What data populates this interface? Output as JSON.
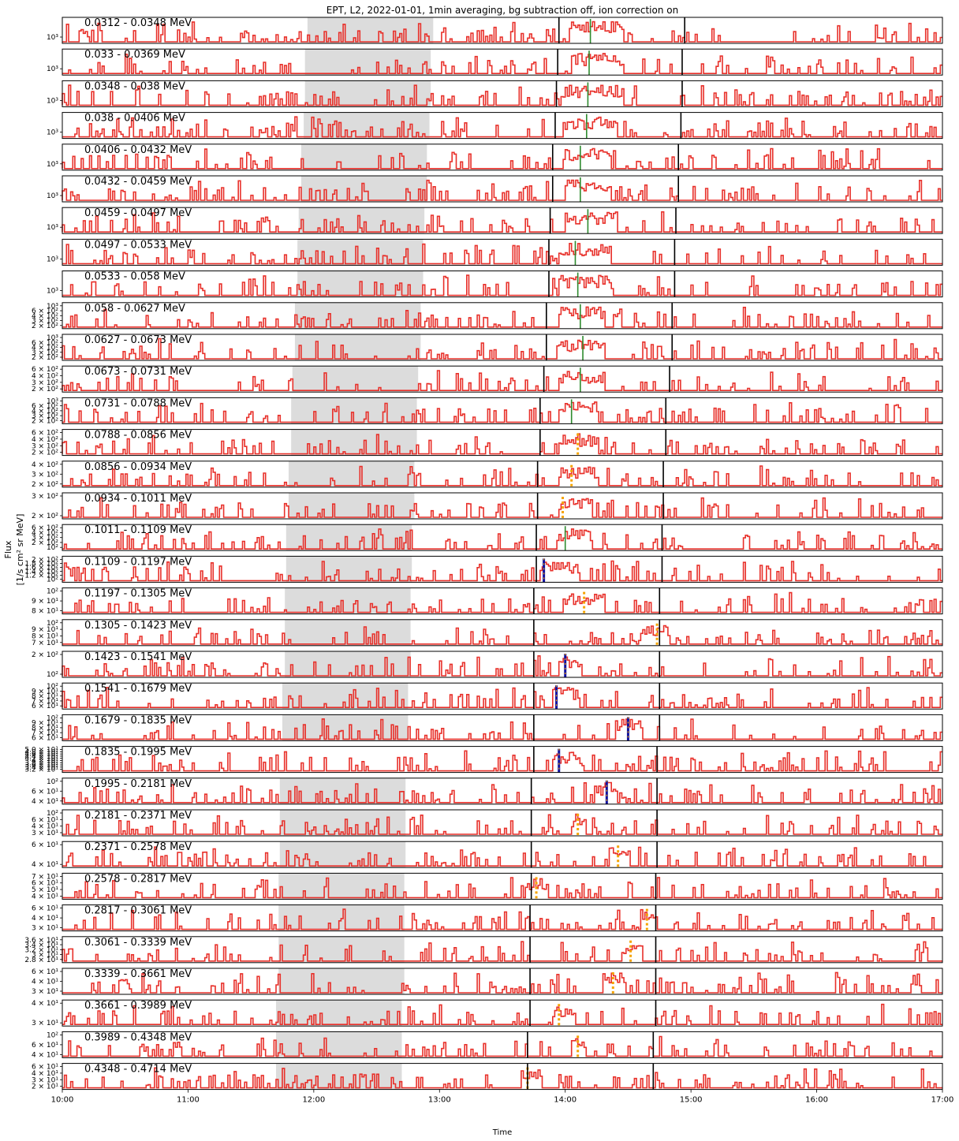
{
  "chart_data": {
    "type": "line",
    "title": "EPT, L2, 2022-01-01, 1min averaging, bg subtraction off, ion correction on",
    "xlabel": "Time",
    "ylabel_line1": "Flux",
    "ylabel_line2": "[1/s cm² sr MeV]",
    "xlim": [
      "10:00",
      "17:00"
    ],
    "x_ticks": [
      "10:00",
      "11:00",
      "12:00",
      "13:00",
      "14:00",
      "15:00",
      "16:00",
      "17:00"
    ],
    "y_scale": "log",
    "series_color": "#e8302a",
    "shading_color": "#dcdcdc",
    "onset_marker_color": "#2e8b2e",
    "panels": [
      {
        "label": "0.0312 - 0.0348 MeV",
        "yticks": [
          "10³"
        ],
        "shade": [
          11.95,
          12.95
        ],
        "vlines": [
          13.95,
          14.95
        ],
        "onset": 14.2,
        "onset_style": "green",
        "peak": [
          14.05,
          14.45
        ],
        "seed": 1
      },
      {
        "label": "0.033 - 0.0369 MeV",
        "yticks": [
          "10³"
        ],
        "shade": [
          11.93,
          12.93
        ],
        "vlines": [
          13.94,
          14.93
        ],
        "onset": 14.19,
        "onset_style": "green",
        "peak": [
          14.05,
          14.45
        ],
        "seed": 2
      },
      {
        "label": "0.0348 - 0.038 MeV",
        "yticks": [
          "10³"
        ],
        "shade": [
          11.93,
          12.93
        ],
        "vlines": [
          13.93,
          14.93
        ],
        "onset": 14.18,
        "onset_style": "green",
        "peak": [
          14.0,
          14.45
        ],
        "seed": 3
      },
      {
        "label": "0.038 - 0.0406 MeV",
        "yticks": [
          "10³"
        ],
        "shade": [
          11.92,
          12.92
        ],
        "vlines": [
          13.92,
          14.92
        ],
        "onset": 14.17,
        "onset_style": "green",
        "peak": [
          14.0,
          14.4
        ],
        "seed": 4
      },
      {
        "label": "0.0406 - 0.0432 MeV",
        "yticks": [
          "10³"
        ],
        "shade": [
          11.9,
          12.9
        ],
        "vlines": [
          13.9,
          14.9
        ],
        "onset": 14.12,
        "onset_style": "green",
        "peak": [
          14.0,
          14.35
        ],
        "seed": 5
      },
      {
        "label": "0.0432 - 0.0459 MeV",
        "yticks": [
          "10³"
        ],
        "shade": [
          11.9,
          12.9
        ],
        "vlines": [
          13.9,
          14.9
        ],
        "onset": 14.12,
        "onset_style": "green",
        "peak": [
          14.0,
          14.35
        ],
        "seed": 6
      },
      {
        "label": "0.0459 - 0.0497 MeV",
        "yticks": [
          "10³"
        ],
        "shade": [
          11.88,
          12.88
        ],
        "vlines": [
          13.88,
          14.88
        ],
        "onset": 14.18,
        "onset_style": "green",
        "peak": [
          14.0,
          14.4
        ],
        "seed": 7
      },
      {
        "label": "0.0497 - 0.0533 MeV",
        "yticks": [
          "10³"
        ],
        "shade": [
          11.87,
          12.87
        ],
        "vlines": [
          13.87,
          14.87
        ],
        "onset": 14.08,
        "onset_style": "green",
        "peak": [
          13.95,
          14.35
        ],
        "seed": 8
      },
      {
        "label": "0.0533 - 0.058 MeV",
        "yticks": [
          "10³"
        ],
        "shade": [
          11.87,
          12.87
        ],
        "vlines": [
          13.87,
          14.87
        ],
        "onset": 14.1,
        "onset_style": "green",
        "peak": [
          13.95,
          14.35
        ],
        "seed": 9
      },
      {
        "label": "0.058 - 0.0627 MeV",
        "yticks": [
          "10³",
          "6 × 10²",
          "4 × 10²",
          "3 × 10²",
          "2 × 10²"
        ],
        "shade": [
          11.85,
          12.85
        ],
        "vlines": [
          13.85,
          14.85
        ],
        "onset": 14.12,
        "onset_style": "green",
        "peak": [
          13.95,
          14.3
        ],
        "seed": 10
      },
      {
        "label": "0.0627 - 0.0673 MeV",
        "yticks": [
          "10³",
          "6 × 10²",
          "4 × 10²",
          "3 × 10²",
          "2 × 10²"
        ],
        "shade": [
          11.85,
          12.85
        ],
        "vlines": [
          13.85,
          14.85
        ],
        "onset": 14.14,
        "onset_style": "green",
        "peak": [
          13.95,
          14.3
        ],
        "seed": 11
      },
      {
        "label": "0.0673 - 0.0731 MeV",
        "yticks": [
          "6 × 10²",
          "4 × 10²",
          "3 × 10²",
          "2 × 10²"
        ],
        "shade": [
          11.83,
          12.83
        ],
        "vlines": [
          13.83,
          14.83
        ],
        "onset": 14.12,
        "onset_style": "green",
        "peak": [
          13.95,
          14.3
        ],
        "seed": 12
      },
      {
        "label": "0.0731 - 0.0788 MeV",
        "yticks": [
          "10³",
          "6 × 10²",
          "4 × 10²",
          "3 × 10²",
          "2 × 10²"
        ],
        "shade": [
          11.82,
          12.82
        ],
        "vlines": [
          13.8,
          14.8
        ],
        "onset": 14.05,
        "onset_style": "green",
        "peak": [
          13.95,
          14.25
        ],
        "seed": 13
      },
      {
        "label": "0.0788 - 0.0856 MeV",
        "yticks": [
          "6 × 10²",
          "4 × 10²",
          "3 × 10²",
          "2 × 10²"
        ],
        "shade": [
          11.82,
          12.82
        ],
        "vlines": [
          13.8,
          14.8
        ],
        "onset": 14.1,
        "onset_style": "orange",
        "peak": [
          13.95,
          14.25
        ],
        "seed": 14
      },
      {
        "label": "0.0856 - 0.0934 MeV",
        "yticks": [
          "4 × 10²",
          "3 × 10²",
          "2 × 10²"
        ],
        "shade": [
          11.8,
          12.8
        ],
        "vlines": [
          13.78,
          14.78
        ],
        "onset": 14.05,
        "onset_style": "orange",
        "peak": [
          13.95,
          14.25
        ],
        "seed": 15
      },
      {
        "label": "0.0934 - 0.1011 MeV",
        "yticks": [
          "3 × 10²",
          "2 × 10²"
        ],
        "shade": [
          11.8,
          12.8
        ],
        "vlines": [
          13.78,
          14.78
        ],
        "onset": 13.98,
        "onset_style": "orange",
        "peak": [
          13.95,
          14.2
        ],
        "seed": 16
      },
      {
        "label": "0.1011 - 0.1109 MeV",
        "yticks": [
          "6 × 10²",
          "4 × 10²",
          "3 × 10²",
          "2 × 10²",
          "10²"
        ],
        "shade": [
          11.78,
          12.78
        ],
        "vlines": [
          13.77,
          14.77
        ],
        "onset": 14.0,
        "onset_style": "green",
        "peak": [
          13.95,
          14.2
        ],
        "seed": 17
      },
      {
        "label": "0.1109 - 0.1197 MeV",
        "yticks": [
          "2 × 10²",
          "1.8 × 10²",
          "1.6 × 10²",
          "1.4 × 10²",
          "1.2 × 10²",
          "10²"
        ],
        "shade": [
          11.78,
          12.78
        ],
        "vlines": [
          13.77,
          14.77
        ],
        "onset": 13.83,
        "onset_style": "blue",
        "peak": [
          13.8,
          14.1
        ],
        "seed": 18
      },
      {
        "label": "0.1197 - 0.1305 MeV",
        "yticks": [
          "10²",
          "9 × 10¹",
          "8 × 10¹"
        ],
        "shade": [
          11.77,
          12.77
        ],
        "vlines": [
          13.75,
          14.75
        ],
        "onset": 14.15,
        "onset_style": "orange",
        "peak": [
          14.0,
          14.3
        ],
        "seed": 19
      },
      {
        "label": "0.1305 - 0.1423 MeV",
        "yticks": [
          "10²",
          "9 × 10¹",
          "8 × 10¹",
          "7 × 10¹"
        ],
        "shade": [
          11.77,
          12.77
        ],
        "vlines": [
          13.75,
          14.75
        ],
        "onset": 14.73,
        "onset_style": "orange",
        "peak": [
          14.6,
          14.8
        ],
        "seed": 20
      },
      {
        "label": "0.1423 - 0.1541 MeV",
        "yticks": [
          "2 × 10²",
          "10²"
        ],
        "shade": [
          11.77,
          12.77
        ],
        "vlines": [
          13.75,
          14.75
        ],
        "onset": 14.0,
        "onset_style": "blue",
        "peak": [
          13.95,
          14.1
        ],
        "seed": 21
      },
      {
        "label": "0.1541 - 0.1679 MeV",
        "yticks": [
          "10²",
          "9 × 10¹",
          "8 × 10¹",
          "7 × 10¹",
          "6 × 10¹"
        ],
        "shade": [
          11.75,
          12.75
        ],
        "vlines": [
          13.75,
          14.75
        ],
        "onset": 13.93,
        "onset_style": "blue",
        "peak": [
          13.9,
          14.1
        ],
        "seed": 22
      },
      {
        "label": "0.1679 - 0.1835 MeV",
        "yticks": [
          "10²",
          "9 × 10¹",
          "8 × 10¹",
          "7 × 10¹",
          "6 × 10¹"
        ],
        "shade": [
          11.75,
          12.75
        ],
        "vlines": [
          13.75,
          14.75
        ],
        "onset": 14.5,
        "onset_style": "blue",
        "peak": [
          14.4,
          14.6
        ],
        "seed": 23
      },
      {
        "label": "0.1835 - 0.1995 MeV",
        "yticks": [
          "5.0 × 10¹",
          "4.8 × 10¹",
          "4.6 × 10¹",
          "4.4 × 10¹",
          "4.2 × 10¹",
          "4 × 10¹",
          "3.8 × 10¹",
          "3.6 × 10¹",
          "3.4 × 10¹",
          "3.2 × 10¹"
        ],
        "shade": null,
        "vlines": [
          13.75,
          14.73
        ],
        "onset": 13.95,
        "onset_style": "blue",
        "peak": [
          13.9,
          14.1
        ],
        "seed": 24
      },
      {
        "label": "0.1995 - 0.2181 MeV",
        "yticks": [
          "10²",
          "6 × 10¹",
          "4 × 10¹"
        ],
        "shade": [
          11.73,
          12.73
        ],
        "vlines": [
          13.73,
          14.73
        ],
        "onset": 14.33,
        "onset_style": "blue",
        "peak": [
          14.25,
          14.4
        ],
        "seed": 25
      },
      {
        "label": "0.2181 - 0.2371 MeV",
        "yticks": [
          "10²",
          "6 × 10¹",
          "4 × 10¹",
          "3 × 10¹"
        ],
        "shade": [
          11.73,
          12.73
        ],
        "vlines": [
          13.73,
          14.73
        ],
        "onset": 14.1,
        "onset_style": "orange",
        "peak": [
          14.05,
          14.15
        ],
        "seed": 26
      },
      {
        "label": "0.2371 - 0.2578 MeV",
        "yticks": [
          "6 × 10¹",
          "4 × 10¹"
        ],
        "shade": [
          11.73,
          12.73
        ],
        "vlines": [
          13.73,
          14.73
        ],
        "onset": 14.42,
        "onset_style": "orange",
        "peak": [
          14.35,
          14.5
        ],
        "seed": 27
      },
      {
        "label": "0.2578 - 0.2817 MeV",
        "yticks": [
          "7 × 10¹",
          "6 × 10¹",
          "5 × 10¹",
          "4 × 10¹"
        ],
        "shade": [
          11.72,
          12.72
        ],
        "vlines": [
          13.73,
          14.72
        ],
        "onset": 13.77,
        "onset_style": "orange",
        "peak": [
          13.7,
          13.85
        ],
        "seed": 28
      },
      {
        "label": "0.2817 - 0.3061 MeV",
        "yticks": [
          "6 × 10¹",
          "4 × 10¹",
          "3 × 10¹"
        ],
        "shade": [
          11.72,
          12.72
        ],
        "vlines": [
          13.72,
          14.72
        ],
        "onset": 14.65,
        "onset_style": "orange",
        "peak": [
          14.6,
          14.72
        ],
        "seed": 29
      },
      {
        "label": "0.3061 - 0.3339 MeV",
        "yticks": [
          "3.6 × 10¹",
          "3.4 × 10¹",
          "3.2 × 10¹",
          "3 × 10¹",
          "2.8 × 10¹"
        ],
        "shade": [
          11.72,
          12.72
        ],
        "vlines": [
          13.72,
          14.72
        ],
        "onset": 14.52,
        "onset_style": "orange",
        "peak": [
          14.45,
          14.6
        ],
        "seed": 30
      },
      {
        "label": "0.3339 - 0.3661 MeV",
        "yticks": [
          "6 × 10¹",
          "4 × 10¹",
          "3 × 10¹"
        ],
        "shade": [
          11.72,
          12.72
        ],
        "vlines": [
          13.72,
          14.72
        ],
        "onset": 14.38,
        "onset_style": "orange",
        "peak": [
          14.3,
          14.45
        ],
        "seed": 31
      },
      {
        "label": "0.3661 - 0.3989 MeV",
        "yticks": [
          "4 × 10¹",
          "3 × 10¹"
        ],
        "shade": [
          11.7,
          12.7
        ],
        "vlines": [
          13.72,
          14.72
        ],
        "onset": 13.95,
        "onset_style": "orange",
        "peak": [
          13.9,
          14.05
        ],
        "seed": 32
      },
      {
        "label": "0.3989 - 0.4348 MeV",
        "yticks": [
          "10²",
          "6 × 10¹",
          "4 × 10¹"
        ],
        "shade": [
          11.7,
          12.7
        ],
        "vlines": [
          13.7,
          14.7
        ],
        "onset": 14.1,
        "onset_style": "orange",
        "peak": [
          14.05,
          14.15
        ],
        "seed": 33
      },
      {
        "label": "0.4348 - 0.4714 MeV",
        "yticks": [
          "6 × 10¹",
          "4 × 10¹",
          "3 × 10¹",
          "2 × 10¹"
        ],
        "shade": [
          11.7,
          12.7
        ],
        "vlines": [
          13.7,
          14.7
        ],
        "onset": 13.7,
        "onset_style": "orange",
        "peak": [
          13.65,
          13.8
        ],
        "seed": 34
      }
    ]
  }
}
